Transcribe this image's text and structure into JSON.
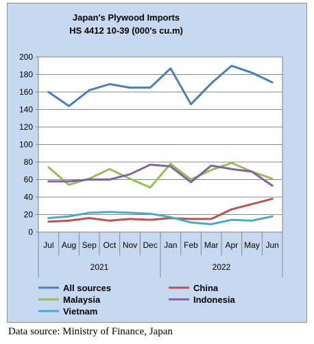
{
  "chart_data": {
    "type": "line",
    "title_lines": [
      "Japan's Plywood Imports",
      "HS 4412 10-39  (000's cu.m)"
    ],
    "categories": [
      "Jul",
      "Aug",
      "Sep",
      "Oct",
      "Nov",
      "Dec",
      "Jan",
      "Feb",
      "Mar",
      "Apr",
      "May",
      "Jun"
    ],
    "year_groups": [
      {
        "label": "2021",
        "span": 6
      },
      {
        "label": "2022",
        "span": 6
      }
    ],
    "ylim": [
      0,
      200
    ],
    "yticks": [
      0,
      20,
      40,
      60,
      80,
      100,
      120,
      140,
      160,
      180,
      200
    ],
    "grid": true,
    "legend_position": "bottom",
    "series": [
      {
        "name": "All sources",
        "color": "#4a7ebb",
        "values": [
          160,
          144,
          162,
          169,
          165,
          165,
          187,
          146,
          170,
          190,
          182,
          171
        ]
      },
      {
        "name": "China",
        "color": "#c0504d",
        "values": [
          12,
          13,
          16,
          13,
          15,
          14,
          16,
          15,
          15,
          26,
          32,
          38
        ]
      },
      {
        "name": "Malaysia",
        "color": "#9bbb59",
        "values": [
          74,
          54,
          61,
          72,
          61,
          51,
          78,
          60,
          71,
          79,
          69,
          61
        ]
      },
      {
        "name": "Indonesia",
        "color": "#8064a2",
        "values": [
          58,
          58,
          60,
          60,
          66,
          77,
          75,
          57,
          76,
          72,
          69,
          53
        ]
      },
      {
        "name": "Vietnam",
        "color": "#4bacc6",
        "values": [
          16,
          18,
          22,
          23,
          22,
          21,
          17,
          11,
          9,
          14,
          13,
          18
        ]
      }
    ]
  },
  "source_note": "Data source: Ministry of Finance, Japan"
}
